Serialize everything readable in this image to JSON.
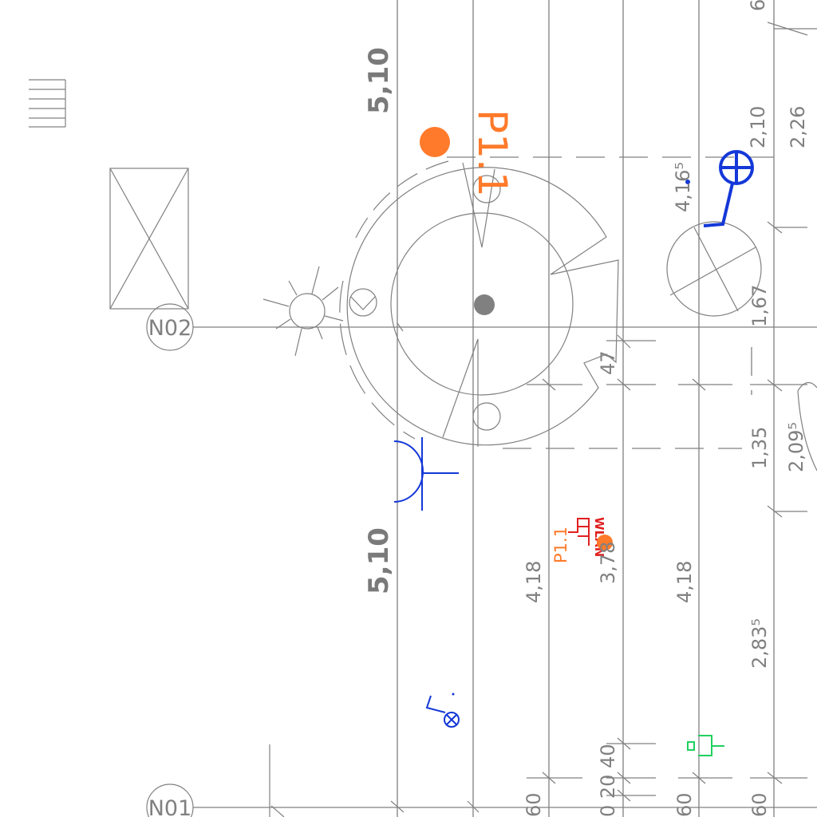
{
  "drawing": {
    "grid_labels": {
      "n02": "N02",
      "n01": "N01"
    },
    "dimensions": {
      "left_top": "5,10",
      "left_bottom": "5,10",
      "top_right_6": "6",
      "right_2_10": "2,10",
      "right_2_26": "2,26",
      "right_4_165": "4,16⁵",
      "right_1_67": "1,67",
      "right_47": "47",
      "right_1_35": "1,35",
      "right_2_095": "2,09⁵",
      "mid_4_18_left": "4,18",
      "mid_3_78": "3,78",
      "mid_4_18_right": "4,18",
      "right_2_835": "2,83⁵",
      "bottom_0_20_40": "0 20 40",
      "bottom_60_a": "60",
      "bottom_60_b": "60",
      "bottom_60_c": "60"
    },
    "tags": {
      "p1_large": "P1.1",
      "p1_small": "P1.1",
      "wlan": "WLAN"
    },
    "colors": {
      "lines": "#808080",
      "blue": "#1438d8",
      "orange": "#ff7a2a",
      "red": "#e02020",
      "green": "#20d060"
    }
  }
}
